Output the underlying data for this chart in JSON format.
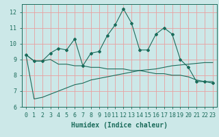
{
  "xlabel": "Humidex (Indice chaleur)",
  "background_color": "#cce8e8",
  "grid_color": "#e8a0a0",
  "line_color": "#1a6b5a",
  "spine_color": "#1a6b5a",
  "xmin": -0.5,
  "xmax": 23.5,
  "ymin": 6,
  "ymax": 12.5,
  "yticks": [
    6,
    7,
    8,
    9,
    10,
    11,
    12
  ],
  "xticks": [
    0,
    1,
    2,
    3,
    4,
    5,
    6,
    7,
    8,
    9,
    10,
    11,
    12,
    13,
    14,
    15,
    16,
    17,
    18,
    19,
    20,
    21,
    22,
    23
  ],
  "series_with_markers": [
    9.3,
    8.9,
    8.9,
    9.4,
    9.7,
    9.6,
    10.3,
    8.6,
    9.4,
    9.5,
    10.5,
    11.2,
    12.2,
    11.3,
    9.6,
    9.6,
    10.6,
    11.0,
    10.6,
    9.0,
    8.5,
    7.6,
    7.6,
    7.5
  ],
  "series_flat": [
    9.3,
    8.9,
    8.9,
    9.0,
    8.7,
    8.7,
    8.6,
    8.6,
    8.5,
    8.5,
    8.4,
    8.4,
    8.4,
    8.3,
    8.3,
    8.2,
    8.1,
    8.1,
    8.0,
    8.0,
    7.9,
    7.7,
    7.6,
    7.6
  ],
  "series_rising": [
    9.3,
    6.5,
    6.6,
    6.8,
    7.0,
    7.2,
    7.4,
    7.5,
    7.7,
    7.8,
    7.9,
    8.0,
    8.1,
    8.2,
    8.3,
    8.35,
    8.4,
    8.5,
    8.6,
    8.65,
    8.7,
    8.75,
    8.8,
    8.8
  ],
  "xlabel_fontsize": 7,
  "tick_fontsize": 6
}
